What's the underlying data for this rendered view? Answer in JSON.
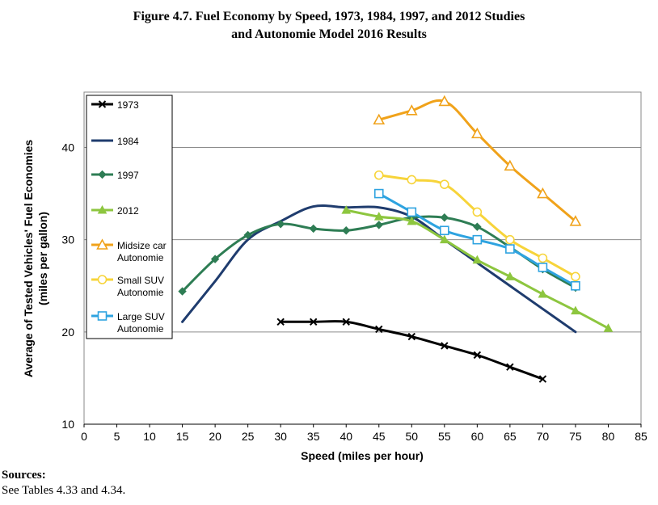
{
  "header": {
    "title_line1": "Figure 4.7.  Fuel Economy by Speed, 1973, 1984, 1997, and 2012 Studies",
    "title_line2": "and Autonomie Model 2016 Results"
  },
  "footer": {
    "sources_label": "Sources:",
    "sources_text": "See Tables 4.33 and 4.34."
  },
  "chart_data": {
    "type": "line",
    "title": "Figure 4.7.  Fuel Economy by Speed, 1973, 1984, 1997, and 2012 Studies and Autonomie Model 2016 Results",
    "xlabel": "Speed (miles per hour)",
    "ylabel_line1": "Average of Tested Vehicles' Fuel Economies",
    "ylabel_line2": "(miles per gallon)",
    "xlim": [
      0,
      85
    ],
    "ylim": [
      10,
      46
    ],
    "xticks": [
      0,
      5,
      10,
      15,
      20,
      25,
      30,
      35,
      40,
      45,
      50,
      55,
      60,
      65,
      70,
      75,
      80,
      85
    ],
    "yticks": [
      10,
      20,
      30,
      40
    ],
    "grid": "horizontal",
    "legend_position": "top-left",
    "series": [
      {
        "name": "1973",
        "color": "#000000",
        "marker": "x",
        "markers_drawn": true,
        "x": [
          30,
          35,
          40,
          45,
          50,
          55,
          60,
          65,
          70
        ],
        "y": [
          21.1,
          21.1,
          21.1,
          20.3,
          19.5,
          18.5,
          17.5,
          16.2,
          14.9
        ]
      },
      {
        "name": "1984",
        "color": "#1f3c6e",
        "marker": "none",
        "markers_drawn": false,
        "x": [
          15,
          20,
          25,
          30,
          35,
          40,
          45,
          50,
          55,
          60,
          65,
          70,
          75
        ],
        "y": [
          21.1,
          25.5,
          30.0,
          32.0,
          33.6,
          33.5,
          33.5,
          32.5,
          30.0,
          27.5,
          25.0,
          22.5,
          20.0
        ]
      },
      {
        "name": "1997",
        "color": "#2e7d54",
        "marker": "diamond",
        "markers_drawn": true,
        "x": [
          15,
          20,
          25,
          30,
          35,
          40,
          45,
          50,
          55,
          60,
          65,
          70,
          75
        ],
        "y": [
          24.4,
          27.9,
          30.5,
          31.7,
          31.2,
          31.0,
          31.6,
          32.4,
          32.4,
          31.4,
          29.2,
          26.8,
          24.8
        ]
      },
      {
        "name": "2012",
        "color": "#8dc63f",
        "marker": "triangle",
        "markers_drawn": true,
        "x": [
          40,
          45,
          50,
          55,
          60,
          65,
          70,
          75,
          80
        ],
        "y": [
          33.2,
          32.5,
          32.0,
          30.0,
          27.8,
          26.0,
          24.1,
          22.3,
          20.4
        ]
      },
      {
        "name": "Midsize car Autonomie",
        "label_line1": "Midsize car",
        "label_line2": "Autonomie",
        "color": "#f0a21a",
        "marker": "triangle-open",
        "markers_drawn": true,
        "x": [
          45,
          50,
          55,
          60,
          65,
          70,
          75
        ],
        "y": [
          43.0,
          44.0,
          45.0,
          41.5,
          38.0,
          35.0,
          32.0
        ]
      },
      {
        "name": "Small SUV Autonomie",
        "label_line1": "Small SUV",
        "label_line2": "Autonomie",
        "color": "#f7d43a",
        "marker": "circle-open",
        "markers_drawn": true,
        "x": [
          45,
          50,
          55,
          60,
          65,
          70,
          75
        ],
        "y": [
          37.0,
          36.5,
          36.0,
          33.0,
          30.0,
          28.0,
          26.0
        ]
      },
      {
        "name": "Large SUV Autonomie",
        "label_line1": "Large SUV",
        "label_line2": "Autonomie",
        "color": "#2ea3e0",
        "marker": "square-open",
        "markers_drawn": true,
        "x": [
          45,
          50,
          55,
          60,
          65,
          70,
          75
        ],
        "y": [
          35.0,
          33.0,
          31.0,
          30.0,
          29.0,
          27.0,
          25.0
        ]
      }
    ]
  }
}
